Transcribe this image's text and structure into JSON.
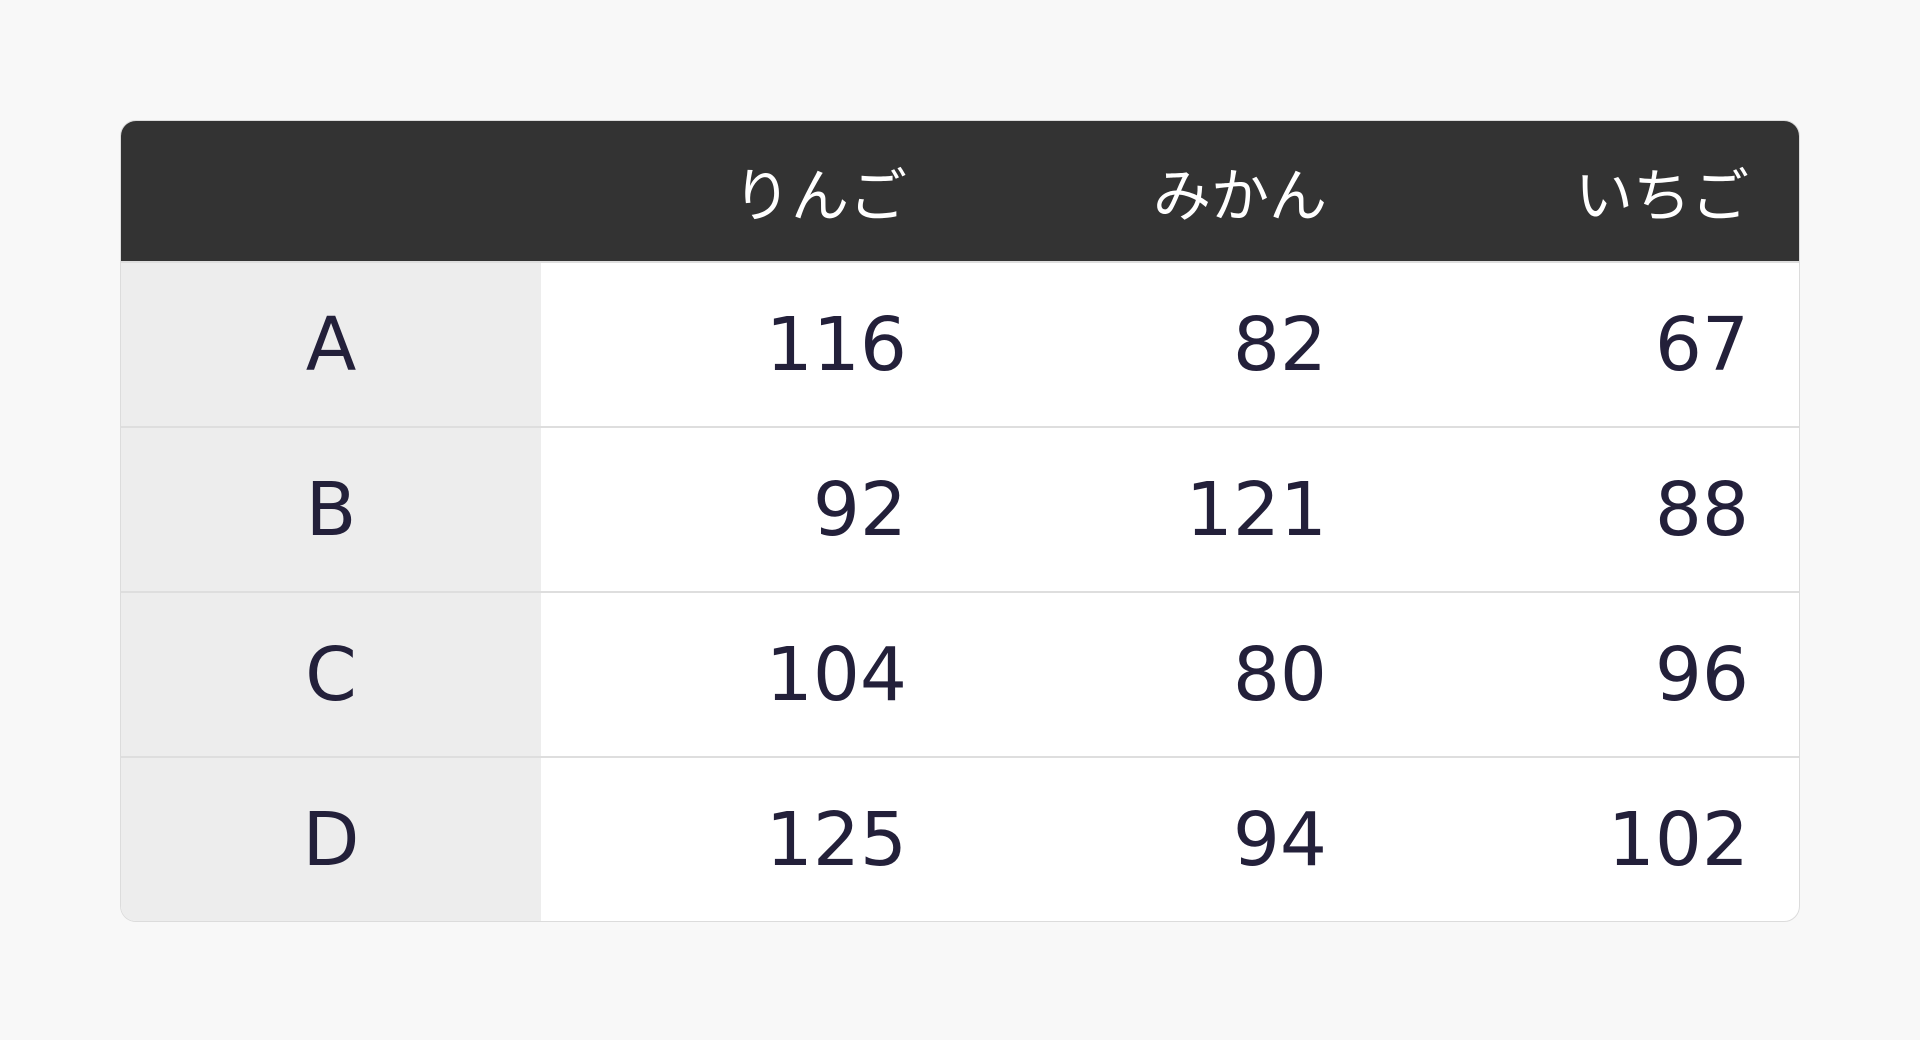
{
  "table": {
    "columns": [
      "",
      "りんご",
      "みかん",
      "いちご"
    ],
    "rows": [
      {
        "label": "A",
        "values": [
          "116",
          "82",
          "67"
        ]
      },
      {
        "label": "B",
        "values": [
          "92",
          "121",
          "88"
        ]
      },
      {
        "label": "C",
        "values": [
          "104",
          "80",
          "96"
        ]
      },
      {
        "label": "D",
        "values": [
          "125",
          "94",
          "102"
        ]
      }
    ]
  },
  "colors": {
    "header_bg": "#333333",
    "label_bg": "#ededed",
    "text": "#23203a",
    "background": "#f8f8f8"
  }
}
